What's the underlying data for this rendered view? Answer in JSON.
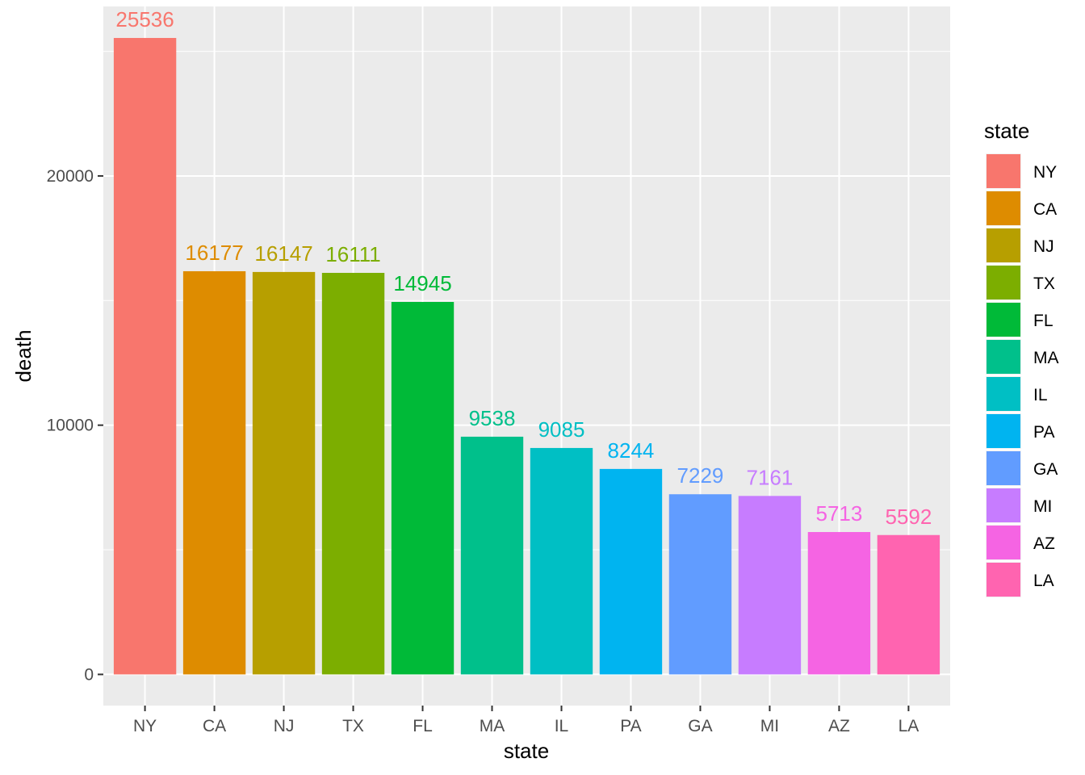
{
  "chart_data": {
    "type": "bar",
    "xlabel": "state",
    "ylabel": "death",
    "categories": [
      "NY",
      "CA",
      "NJ",
      "TX",
      "FL",
      "MA",
      "IL",
      "PA",
      "GA",
      "MI",
      "AZ",
      "LA"
    ],
    "values": [
      25536,
      16177,
      16147,
      16111,
      14945,
      9538,
      9085,
      8244,
      7229,
      7161,
      5713,
      5592
    ],
    "colors": [
      "#F8766D",
      "#DE8C00",
      "#B79F00",
      "#7CAE00",
      "#00BA38",
      "#00C08B",
      "#00BFC4",
      "#00B4F0",
      "#619CFF",
      "#C77CFF",
      "#F564E3",
      "#FF64B0"
    ],
    "ylim": [
      -1250,
      26800
    ],
    "yticks": [
      0,
      10000,
      20000
    ],
    "grid": true,
    "legend": {
      "title": "state",
      "placement": "right"
    }
  }
}
